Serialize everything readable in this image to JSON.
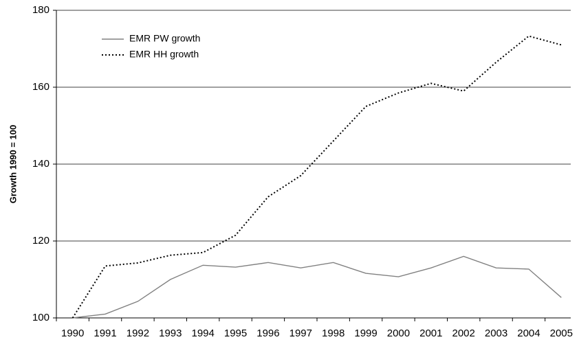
{
  "chart_data": {
    "type": "line",
    "y_label": "Growth 1990 = 100",
    "categories": [
      "1990",
      "1991",
      "1992",
      "1993",
      "1994",
      "1995",
      "1996",
      "1997",
      "1998",
      "1999",
      "2000",
      "2001",
      "2002",
      "2003",
      "2004",
      "2005"
    ],
    "series": [
      {
        "name": "EMR PW growth",
        "color": "#808080",
        "dash": "solid",
        "values": [
          100,
          101,
          104.3,
          110,
          113.7,
          113.2,
          114.4,
          113,
          114.4,
          111.6,
          110.7,
          113,
          116,
          113,
          112.7,
          105.3
        ]
      },
      {
        "name": "EMR HH growth",
        "color": "#000000",
        "dash": "dotted",
        "values": [
          100,
          113.5,
          114.3,
          116.3,
          117,
          121.5,
          131.5,
          137,
          146,
          155,
          158.5,
          161,
          159,
          166.5,
          173.3,
          171
        ]
      }
    ],
    "ylim": [
      100,
      180
    ],
    "yticks": [
      100,
      120,
      140,
      160,
      180
    ],
    "grid": true,
    "legend": "top-left"
  }
}
